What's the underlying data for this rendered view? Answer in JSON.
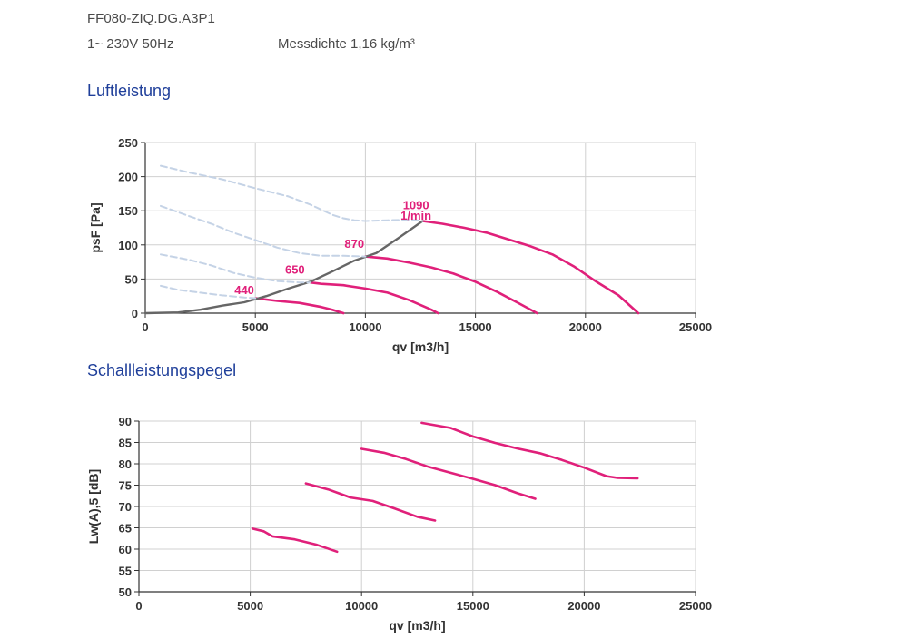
{
  "header": {
    "model": "FF080-ZIQ.DG.A3P1",
    "supply": "1~ 230V 50Hz",
    "density": "Messdichte 1,16 kg/m³"
  },
  "sections": {
    "air": "Luftleistung",
    "sound": "Schallleistungspegel"
  },
  "colors": {
    "curve": "#e0207a",
    "system": "#666666",
    "dashed": "#c5d3e6",
    "grid": "#d0d0d0",
    "heading": "#1f3f9a"
  },
  "chart_data": [
    {
      "type": "line",
      "title": "Luftleistung",
      "xlabel": "qv [m3/h]",
      "ylabel": "psF [Pa]",
      "xlim": [
        0,
        25000
      ],
      "ylim": [
        0,
        250
      ],
      "xticks": [
        0,
        5000,
        10000,
        15000,
        20000,
        25000
      ],
      "yticks": [
        0,
        50,
        100,
        150,
        200,
        250
      ],
      "grid": true,
      "speed_labels": [
        {
          "text": "440",
          "x": 4500,
          "y": 28
        },
        {
          "text": "650",
          "x": 6800,
          "y": 58
        },
        {
          "text": "870",
          "x": 9500,
          "y": 96
        },
        {
          "text": "1090",
          "x": 12300,
          "y": 152
        },
        {
          "text": "1/min",
          "x": 12300,
          "y": 137
        }
      ],
      "series": [
        {
          "style": "solid",
          "color": "#e0207a",
          "x": [
            5000,
            6000,
            7000,
            8000,
            8500,
            9000
          ],
          "y": [
            22,
            18,
            15,
            9,
            5,
            0
          ]
        },
        {
          "style": "solid",
          "color": "#e0207a",
          "x": [
            7500,
            8000,
            9000,
            10000,
            11000,
            12000,
            13000,
            13300
          ],
          "y": [
            45,
            43,
            41,
            36,
            30,
            19,
            5,
            0
          ]
        },
        {
          "style": "solid",
          "color": "#e0207a",
          "x": [
            10000,
            11000,
            12000,
            13000,
            14000,
            15000,
            16000,
            17000,
            17800
          ],
          "y": [
            83,
            80,
            74,
            67,
            58,
            46,
            31,
            14,
            0
          ]
        },
        {
          "style": "solid",
          "color": "#e0207a",
          "x": [
            12600,
            13500,
            14500,
            15500,
            16500,
            17500,
            18500,
            19500,
            20500,
            21500,
            22400
          ],
          "y": [
            135,
            131,
            125,
            118,
            108,
            98,
            86,
            68,
            46,
            26,
            0
          ]
        },
        {
          "style": "solid",
          "color": "#666666",
          "x": [
            0,
            1500,
            2500,
            3500,
            4500,
            5500,
            6500,
            7500,
            8500,
            9500,
            10500,
            11500,
            12600
          ],
          "y": [
            0,
            1,
            5,
            11,
            16,
            25,
            36,
            46,
            61,
            77,
            88,
            110,
            135
          ]
        },
        {
          "style": "dashed",
          "color": "#c5d3e6",
          "x": [
            700,
            2000,
            3500,
            5000,
            6500,
            7500,
            8500,
            9000,
            9500,
            10000,
            11000,
            12000,
            12600
          ],
          "y": [
            216,
            206,
            196,
            183,
            171,
            159,
            144,
            139,
            136,
            135,
            136,
            137,
            135
          ]
        },
        {
          "style": "dashed",
          "color": "#c5d3e6",
          "x": [
            700,
            2000,
            3000,
            4000,
            5000,
            6000,
            7000,
            8000,
            9000,
            10000
          ],
          "y": [
            157,
            142,
            131,
            118,
            107,
            96,
            88,
            84,
            84,
            83
          ]
        },
        {
          "style": "dashed",
          "color": "#c5d3e6",
          "x": [
            700,
            2000,
            3000,
            4000,
            5000,
            6000,
            7000,
            7500
          ],
          "y": [
            86,
            78,
            70,
            59,
            52,
            47,
            45,
            45
          ]
        },
        {
          "style": "dashed",
          "color": "#c5d3e6",
          "x": [
            700,
            1500,
            2500,
            3500,
            4500,
            5000
          ],
          "y": [
            40,
            34,
            30,
            26,
            23,
            22
          ]
        }
      ]
    },
    {
      "type": "line",
      "title": "Schallleistungspegel",
      "xlabel": "qv [m3/h]",
      "ylabel": "Lw(A),5 [dB]",
      "xlim": [
        0,
        25000
      ],
      "ylim": [
        50,
        90
      ],
      "xticks": [
        0,
        5000,
        10000,
        15000,
        20000,
        25000
      ],
      "yticks": [
        50,
        55,
        60,
        65,
        70,
        75,
        80,
        85,
        90
      ],
      "grid": true,
      "series": [
        {
          "style": "solid",
          "color": "#e0207a",
          "x": [
            5100,
            5600,
            6000,
            7000,
            8000,
            8900
          ],
          "y": [
            64.8,
            64.2,
            63.0,
            62.3,
            61.0,
            59.4
          ]
        },
        {
          "style": "solid",
          "color": "#e0207a",
          "x": [
            7500,
            8500,
            9500,
            10500,
            11500,
            12500,
            13300
          ],
          "y": [
            75.4,
            74.0,
            72.1,
            71.3,
            69.5,
            67.6,
            66.7
          ]
        },
        {
          "style": "solid",
          "color": "#e0207a",
          "x": [
            10000,
            11000,
            12000,
            13000,
            14000,
            15000,
            16000,
            17000,
            17800
          ],
          "y": [
            83.5,
            82.6,
            81.1,
            79.3,
            77.9,
            76.5,
            75.0,
            73.1,
            71.8
          ]
        },
        {
          "style": "solid",
          "color": "#e0207a",
          "x": [
            12700,
            14000,
            15000,
            16000,
            17000,
            18000,
            19000,
            20000,
            21000,
            21500,
            22400
          ],
          "y": [
            89.6,
            88.4,
            86.4,
            84.9,
            83.6,
            82.5,
            80.9,
            79.1,
            77.1,
            76.7,
            76.6
          ]
        }
      ]
    }
  ]
}
